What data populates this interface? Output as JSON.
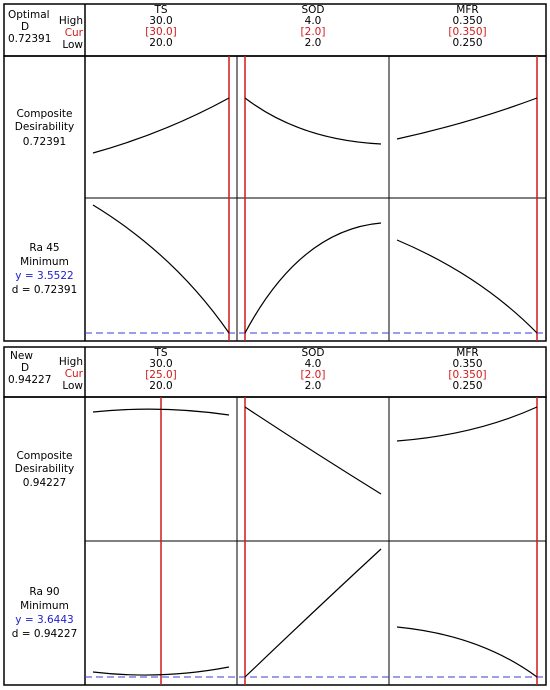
{
  "colors": {
    "current_line": "#d11a1a",
    "target_line": "#3b3bd6",
    "curve": "#000000",
    "border": "#000000"
  },
  "panels": [
    {
      "corner": {
        "title": "Optimal",
        "d_label": "D",
        "d_value": "0.72391",
        "high": "High",
        "cur": "Cur",
        "low": "Low"
      },
      "factors": [
        {
          "name": "TS",
          "high": "30.0",
          "cur": "[30.0]",
          "low": "20.0"
        },
        {
          "name": "SOD",
          "high": "4.0",
          "cur": "[2.0]",
          "low": "2.0"
        },
        {
          "name": "MFR",
          "high": "0.350",
          "cur": "[0.350]",
          "low": "0.250"
        }
      ],
      "rows": [
        {
          "label1": "Composite",
          "label2": "Desirability",
          "value": "0.72391"
        },
        {
          "label1": "Ra 45",
          "label2": "Minimum",
          "y": "y = 3.5522",
          "d": "d = 0.72391"
        }
      ]
    },
    {
      "corner": {
        "title": "New",
        "d_label": "D",
        "d_value": "0.94227",
        "high": "High",
        "cur": "Cur",
        "low": "Low"
      },
      "factors": [
        {
          "name": "TS",
          "high": "30.0",
          "cur": "[25.0]",
          "low": "20.0"
        },
        {
          "name": "SOD",
          "high": "4.0",
          "cur": "[2.0]",
          "low": "2.0"
        },
        {
          "name": "MFR",
          "high": "0.350",
          "cur": "[0.350]",
          "low": "0.250"
        }
      ],
      "rows": [
        {
          "label1": "Composite",
          "label2": "Desirability",
          "value": "0.94227"
        },
        {
          "label1": "Ra 90",
          "label2": "Minimum",
          "y": "y = 3.6443",
          "d": "d = 0.94227"
        }
      ]
    }
  ]
}
